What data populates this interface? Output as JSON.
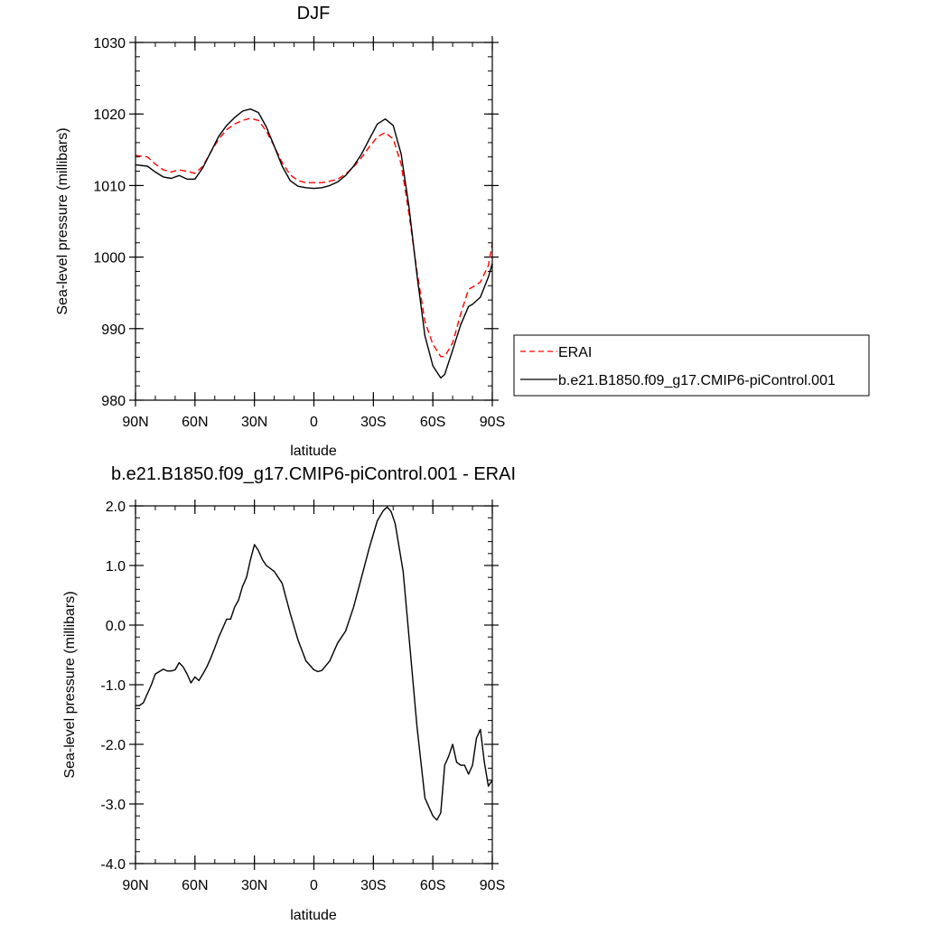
{
  "colors": {
    "erai": "#ff0000",
    "model": "#000000",
    "frame": "#000000",
    "background": "#ffffff"
  },
  "chart_data": [
    {
      "type": "line",
      "title": "DJF",
      "xlabel": "latitude",
      "ylabel": "Sea-level pressure (millibars)",
      "xlim": [
        90,
        -90
      ],
      "ylim": [
        980,
        1030
      ],
      "x_tick_values": [
        90,
        60,
        30,
        0,
        -30,
        -60,
        -90
      ],
      "x_tick_labels": [
        "90N",
        "60N",
        "30N",
        "0",
        "30S",
        "60S",
        "90S"
      ],
      "y_tick_values": [
        980,
        990,
        1000,
        1010,
        1020,
        1030
      ],
      "y_tick_labels": [
        "980",
        "990",
        "1000",
        "1010",
        "1020",
        "1030"
      ],
      "grid": false,
      "legend": {
        "placement": "right",
        "entries": [
          {
            "name": "ERAI",
            "style": "dashed",
            "color": "#ff0000"
          },
          {
            "name": "b.e21.B1850.f09_g17.CMIP6-piControl.001",
            "style": "solid",
            "color": "#000000"
          }
        ]
      },
      "series": [
        {
          "name": "ERAI",
          "style": "dashed",
          "color": "#ff0000",
          "x": [
            90,
            84,
            80,
            76,
            72,
            68,
            64,
            60,
            56,
            52,
            48,
            44,
            40,
            36,
            32,
            28,
            24,
            20,
            16,
            12,
            8,
            4,
            0,
            -4,
            -8,
            -12,
            -16,
            -20,
            -24,
            -28,
            -32,
            -36,
            -40,
            -44,
            -48,
            -52,
            -56,
            -60,
            -64,
            -66,
            -70,
            -74,
            -78,
            -80,
            -84,
            -88,
            -90
          ],
          "y": [
            1014.2,
            1014.0,
            1013.0,
            1012.2,
            1011.9,
            1012.2,
            1012.0,
            1011.7,
            1012.7,
            1014.7,
            1016.5,
            1017.8,
            1018.6,
            1019.1,
            1019.4,
            1019.1,
            1017.6,
            1015.5,
            1013.2,
            1011.5,
            1010.7,
            1010.4,
            1010.4,
            1010.4,
            1010.6,
            1010.9,
            1011.6,
            1012.6,
            1013.9,
            1015.4,
            1016.8,
            1017.4,
            1016.5,
            1013.0,
            1006.0,
            998.0,
            991.0,
            987.8,
            986.1,
            986.1,
            988.0,
            992.0,
            995.5,
            995.8,
            996.5,
            998.8,
            1001.9
          ]
        },
        {
          "name": "b.e21.B1850.f09_g17.CMIP6-piControl.001",
          "style": "solid",
          "color": "#000000",
          "x": [
            90,
            84,
            80,
            76,
            72,
            68,
            64,
            60,
            56,
            52,
            48,
            44,
            40,
            36,
            32,
            28,
            24,
            20,
            16,
            12,
            8,
            4,
            0,
            -4,
            -8,
            -12,
            -16,
            -20,
            -24,
            -28,
            -32,
            -36,
            -40,
            -44,
            -48,
            -52,
            -56,
            -60,
            -64,
            -66,
            -70,
            -74,
            -78,
            -80,
            -84,
            -88,
            -90
          ],
          "y": [
            1012.9,
            1012.7,
            1011.9,
            1011.2,
            1011.0,
            1011.4,
            1010.9,
            1010.9,
            1012.5,
            1014.7,
            1016.9,
            1018.4,
            1019.5,
            1020.4,
            1020.7,
            1020.2,
            1018.2,
            1015.5,
            1012.7,
            1010.7,
            1009.9,
            1009.7,
            1009.6,
            1009.7,
            1010.0,
            1010.5,
            1011.4,
            1012.7,
            1014.4,
            1016.5,
            1018.6,
            1019.3,
            1018.4,
            1014.4,
            1007.0,
            997.5,
            989.0,
            984.8,
            983.1,
            983.6,
            987.0,
            990.5,
            993.1,
            993.4,
            994.4,
            997.2,
            999.1
          ]
        }
      ]
    },
    {
      "type": "line",
      "title": "b.e21.B1850.f09_g17.CMIP6-piControl.001 - ERAI",
      "xlabel": "latitude",
      "ylabel": "Sea-level pressure (millibars)",
      "xlim": [
        90,
        -90
      ],
      "ylim": [
        -4.0,
        2.0
      ],
      "x_tick_values": [
        90,
        60,
        30,
        0,
        -30,
        -60,
        -90
      ],
      "x_tick_labels": [
        "90N",
        "60N",
        "30N",
        "0",
        "30S",
        "60S",
        "90S"
      ],
      "y_tick_values": [
        -4,
        -3,
        -2,
        -1,
        0,
        1,
        2
      ],
      "y_tick_labels": [
        "-4.0",
        "-3.0",
        "-2.0",
        "-1.0",
        "0.0",
        "1.0",
        "2.0"
      ],
      "grid": false,
      "series": [
        {
          "style": "solid",
          "color": "#000000",
          "x": [
            90,
            88,
            86,
            84,
            82,
            80,
            78,
            76,
            74,
            72,
            70,
            68,
            66,
            64,
            62,
            60,
            58,
            56,
            54,
            52,
            50,
            48,
            46,
            44,
            42,
            40,
            38,
            36,
            34,
            32,
            30,
            28,
            26,
            24,
            20,
            16,
            12,
            8,
            4,
            0,
            -2,
            -4,
            -6,
            -8,
            -10,
            -12,
            -16,
            -20,
            -24,
            -28,
            -32,
            -35,
            -37,
            -39,
            -41,
            -43,
            -45,
            -48,
            -52,
            -56,
            -60,
            -62,
            -64,
            -66,
            -68,
            -70,
            -72,
            -74,
            -76,
            -78,
            -80,
            -82,
            -84,
            -86,
            -88,
            -90
          ],
          "y": [
            -1.35,
            -1.35,
            -1.3,
            -1.15,
            -1.0,
            -0.82,
            -0.78,
            -0.74,
            -0.77,
            -0.77,
            -0.75,
            -0.63,
            -0.7,
            -0.82,
            -0.97,
            -0.87,
            -0.93,
            -0.82,
            -0.7,
            -0.55,
            -0.38,
            -0.2,
            -0.05,
            0.1,
            0.1,
            0.3,
            0.42,
            0.65,
            0.8,
            1.1,
            1.35,
            1.25,
            1.1,
            1.0,
            0.9,
            0.7,
            0.2,
            -0.25,
            -0.6,
            -0.75,
            -0.78,
            -0.76,
            -0.68,
            -0.6,
            -0.45,
            -0.3,
            -0.1,
            0.3,
            0.8,
            1.3,
            1.75,
            1.92,
            1.98,
            1.9,
            1.7,
            1.3,
            0.9,
            -0.2,
            -1.7,
            -2.9,
            -3.2,
            -3.27,
            -3.15,
            -2.35,
            -2.2,
            -2.0,
            -2.3,
            -2.35,
            -2.35,
            -2.5,
            -2.35,
            -1.9,
            -1.75,
            -2.3,
            -2.7,
            -2.6
          ]
        }
      ]
    }
  ]
}
